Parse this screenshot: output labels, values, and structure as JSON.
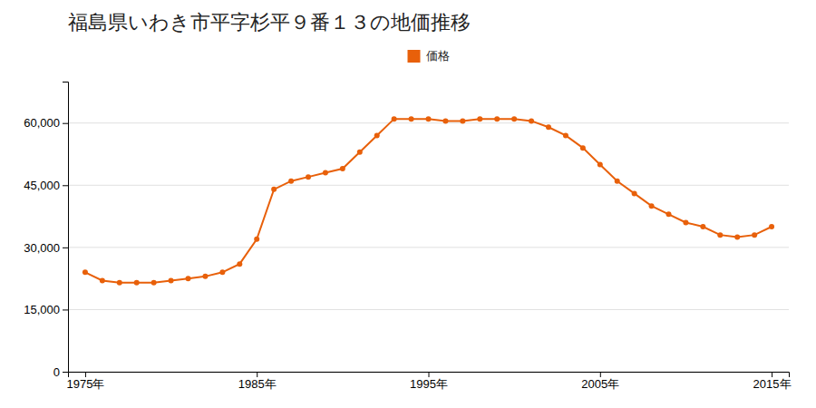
{
  "chart_data": {
    "type": "line",
    "title": "福島県いわき市平字杉平９番１３の地価推移",
    "x": [
      1975,
      1976,
      1977,
      1978,
      1979,
      1980,
      1981,
      1982,
      1983,
      1984,
      1985,
      1986,
      1987,
      1988,
      1989,
      1990,
      1991,
      1992,
      1993,
      1994,
      1995,
      1996,
      1997,
      1998,
      1999,
      2000,
      2001,
      2002,
      2003,
      2004,
      2005,
      2006,
      2007,
      2008,
      2009,
      2010,
      2011,
      2012,
      2013,
      2014,
      2015
    ],
    "series": [
      {
        "name": "価格",
        "color": "#e8600a",
        "marker": "circle",
        "values": [
          24000,
          22000,
          21500,
          21500,
          21500,
          22000,
          22500,
          23000,
          24000,
          26000,
          32000,
          44000,
          46000,
          47000,
          48000,
          49000,
          53000,
          57000,
          61000,
          61000,
          61000,
          60500,
          60500,
          61000,
          61000,
          61000,
          60500,
          59000,
          57000,
          54000,
          50000,
          46000,
          43000,
          40000,
          38000,
          36000,
          35000,
          33000,
          32500,
          33000,
          35000
        ]
      }
    ],
    "xlim": [
      1974,
      2016
    ],
    "xticks": [
      {
        "value": 1975,
        "label": "1975年"
      },
      {
        "value": 1985,
        "label": "1985年"
      },
      {
        "value": 1995,
        "label": "1995年"
      },
      {
        "value": 2005,
        "label": "2005年"
      },
      {
        "value": 2015,
        "label": "2015年"
      }
    ],
    "ylim": [
      0,
      70000
    ],
    "yticks": [
      0,
      {
        "value": 15000,
        "label": "15,000"
      },
      {
        "value": 30000,
        "label": "30,000"
      },
      {
        "value": 45000,
        "label": "45,000"
      },
      {
        "value": 60000,
        "label": "60,000"
      }
    ],
    "grid": true,
    "legend": "top"
  }
}
